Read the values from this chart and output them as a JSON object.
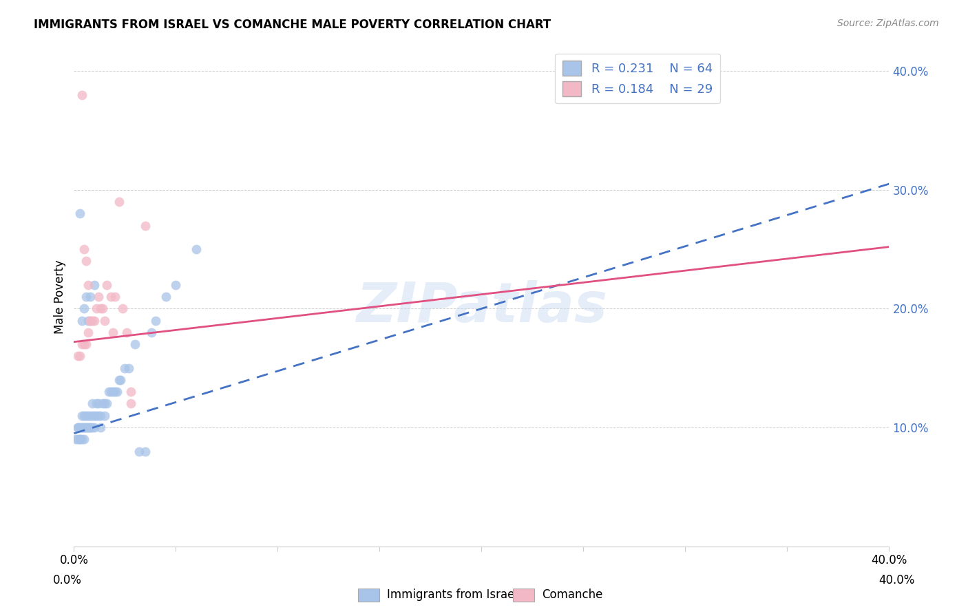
{
  "title": "IMMIGRANTS FROM ISRAEL VS COMANCHE MALE POVERTY CORRELATION CHART",
  "source": "Source: ZipAtlas.com",
  "ylabel": "Male Poverty",
  "xlim": [
    0.0,
    0.4
  ],
  "ylim": [
    0.0,
    0.42
  ],
  "yticks": [
    0.1,
    0.2,
    0.3,
    0.4
  ],
  "ytick_labels": [
    "10.0%",
    "20.0%",
    "30.0%",
    "40.0%"
  ],
  "xticks": [
    0.0,
    0.05,
    0.1,
    0.15,
    0.2,
    0.25,
    0.3,
    0.35,
    0.4
  ],
  "xtick_labels": [
    "0.0%",
    "",
    "",
    "",
    "",
    "",
    "",
    "",
    "40.0%"
  ],
  "legend_r1": "R = 0.231",
  "legend_n1": "N = 64",
  "legend_r2": "R = 0.184",
  "legend_n2": "N = 29",
  "color_blue": "#a8c4e8",
  "color_pink": "#f2b8c6",
  "color_blue_dark": "#4472c4",
  "color_pink_dark": "#e05080",
  "watermark": "ZIPatlas",
  "blue_line_y0": 0.095,
  "blue_line_y1": 0.305,
  "pink_line_y0": 0.172,
  "pink_line_y1": 0.252,
  "israel_x": [
    0.001,
    0.002,
    0.002,
    0.002,
    0.003,
    0.003,
    0.003,
    0.003,
    0.003,
    0.004,
    0.004,
    0.004,
    0.004,
    0.004,
    0.005,
    0.005,
    0.005,
    0.005,
    0.005,
    0.006,
    0.006,
    0.006,
    0.006,
    0.007,
    0.007,
    0.007,
    0.007,
    0.008,
    0.008,
    0.008,
    0.008,
    0.009,
    0.009,
    0.009,
    0.01,
    0.01,
    0.01,
    0.011,
    0.011,
    0.012,
    0.012,
    0.013,
    0.013,
    0.014,
    0.015,
    0.015,
    0.016,
    0.017,
    0.018,
    0.019,
    0.02,
    0.021,
    0.022,
    0.023,
    0.025,
    0.027,
    0.03,
    0.032,
    0.035,
    0.038,
    0.04,
    0.045,
    0.05,
    0.06
  ],
  "israel_y": [
    0.09,
    0.09,
    0.1,
    0.1,
    0.09,
    0.09,
    0.1,
    0.1,
    0.28,
    0.09,
    0.1,
    0.1,
    0.11,
    0.19,
    0.09,
    0.1,
    0.1,
    0.11,
    0.2,
    0.1,
    0.1,
    0.11,
    0.21,
    0.1,
    0.1,
    0.11,
    0.19,
    0.1,
    0.1,
    0.11,
    0.21,
    0.1,
    0.11,
    0.12,
    0.1,
    0.11,
    0.22,
    0.11,
    0.12,
    0.11,
    0.12,
    0.1,
    0.11,
    0.12,
    0.11,
    0.12,
    0.12,
    0.13,
    0.13,
    0.13,
    0.13,
    0.13,
    0.14,
    0.14,
    0.15,
    0.15,
    0.17,
    0.08,
    0.08,
    0.18,
    0.19,
    0.21,
    0.22,
    0.25
  ],
  "comanche_x": [
    0.002,
    0.003,
    0.004,
    0.004,
    0.005,
    0.005,
    0.006,
    0.006,
    0.007,
    0.007,
    0.008,
    0.008,
    0.009,
    0.01,
    0.011,
    0.012,
    0.013,
    0.014,
    0.015,
    0.016,
    0.018,
    0.019,
    0.02,
    0.022,
    0.024,
    0.026,
    0.028,
    0.028,
    0.035
  ],
  "comanche_y": [
    0.16,
    0.16,
    0.17,
    0.38,
    0.17,
    0.25,
    0.17,
    0.24,
    0.18,
    0.22,
    0.19,
    0.19,
    0.19,
    0.19,
    0.2,
    0.21,
    0.2,
    0.2,
    0.19,
    0.22,
    0.21,
    0.18,
    0.21,
    0.29,
    0.2,
    0.18,
    0.13,
    0.12,
    0.27
  ]
}
